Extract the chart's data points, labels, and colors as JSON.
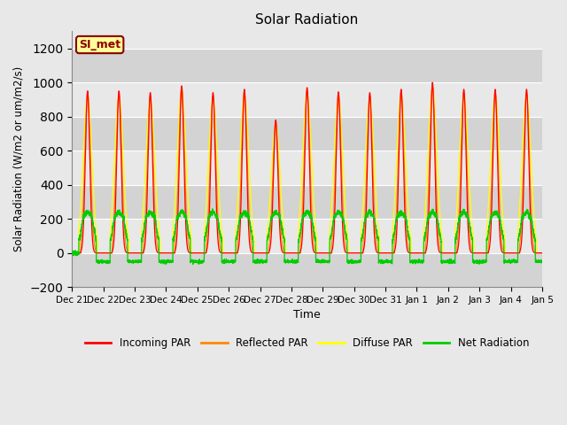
{
  "title": "Solar Radiation",
  "ylabel": "Solar Radiation (W/m2 or um/m2/s)",
  "xlabel": "Time",
  "ylim": [
    -200,
    1300
  ],
  "yticks": [
    -200,
    0,
    200,
    400,
    600,
    800,
    1000,
    1200
  ],
  "fig_bg_color": "#e8e8e8",
  "plot_bg_color": "#e8e8e8",
  "grid_band_color": "#d0d0d0",
  "legend_entries": [
    "Incoming PAR",
    "Reflected PAR",
    "Diffuse PAR",
    "Net Radiation"
  ],
  "legend_colors": [
    "#ff0000",
    "#ff8800",
    "#ffff00",
    "#00cc00"
  ],
  "station_label": "SI_met",
  "n_days": 15,
  "peak_incoming": [
    950,
    950,
    940,
    980,
    940,
    960,
    780,
    970,
    945,
    940,
    960,
    1000,
    960,
    960,
    960
  ],
  "net_night_val": -50,
  "net_peak": 240
}
